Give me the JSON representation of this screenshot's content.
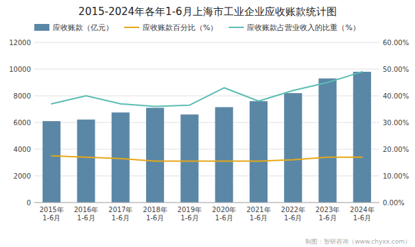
{
  "chart_data": {
    "type": "bar",
    "title": "2015-2024年各年1-6月上海市工业企业应收账款统计图",
    "categories": [
      "2015年\n1-6月",
      "2016年\n1-6月",
      "2017年\n1-6月",
      "2018年\n1-6月",
      "2019年\n1-6月",
      "2020年\n1-6月",
      "2021年\n1-6月",
      "2022年\n1-6月",
      "2023年\n1-6月",
      "2024年\n1-6月"
    ],
    "series": [
      {
        "name": "应收账款（亿元）",
        "type": "bar",
        "color": "#5b87a6",
        "values": [
          6100,
          6220,
          6750,
          7100,
          6600,
          7150,
          7600,
          8200,
          9300,
          9800
        ]
      },
      {
        "name": "应收账款百分比（%）",
        "type": "line",
        "axis": "y2",
        "color": "#e6a817",
        "values": [
          17.5,
          17.0,
          16.5,
          15.5,
          15.5,
          15.5,
          15.5,
          16.0,
          17.0,
          17.0
        ]
      },
      {
        "name": "应收账款占营业收入的比重（%）",
        "type": "line",
        "axis": "y2",
        "color": "#5bbdb4",
        "values": [
          37.0,
          40.0,
          37.0,
          36.0,
          36.5,
          43.0,
          38.0,
          42.0,
          45.0,
          49.0
        ]
      }
    ],
    "ylim": [
      0,
      12000
    ],
    "yticks": [
      0,
      2000,
      4000,
      6000,
      8000,
      10000,
      12000
    ],
    "y2lim": [
      0.0,
      60.0
    ],
    "y2ticks": [
      {
        "value": 0.0,
        "label": "0.00%"
      },
      {
        "value": 10.0,
        "label": "10.00%"
      },
      {
        "value": 20.0,
        "label": "20.00%"
      },
      {
        "value": 30.0,
        "label": "30.00%"
      },
      {
        "value": 40.0,
        "label": "40.00%"
      },
      {
        "value": 50.0,
        "label": "50.00%"
      },
      {
        "value": 60.0,
        "label": "60.00%"
      }
    ],
    "grid": true,
    "legend": "upper left",
    "annotations": [
      "制图：智研咨询（www.chyxx.com）"
    ]
  }
}
